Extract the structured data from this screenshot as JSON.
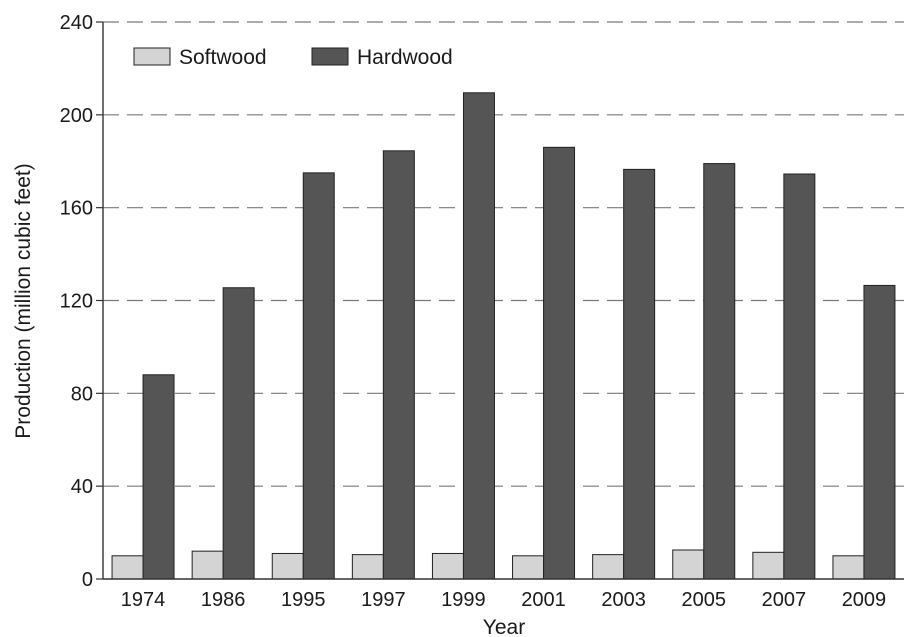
{
  "chart_data": {
    "type": "bar",
    "title": "",
    "xlabel": "Year",
    "ylabel": "Production (million cubic feet)",
    "ylim": [
      0,
      240
    ],
    "yticks": [
      0,
      40,
      80,
      120,
      160,
      200,
      240
    ],
    "grid": "horizontal dashed",
    "legend_position": "top-left",
    "categories": [
      "1974",
      "1986",
      "1995",
      "1997",
      "1999",
      "2001",
      "2003",
      "2005",
      "2007",
      "2009"
    ],
    "series": [
      {
        "name": "Softwood",
        "color": "#d4d4d4",
        "values": [
          10,
          12,
          11,
          10.5,
          11,
          10,
          10.5,
          12.5,
          11.5,
          10
        ]
      },
      {
        "name": "Hardwood",
        "color": "#555555",
        "values": [
          88,
          125.5,
          175,
          184.5,
          209.5,
          186,
          176.5,
          179,
          174.5,
          126.5
        ]
      }
    ]
  }
}
